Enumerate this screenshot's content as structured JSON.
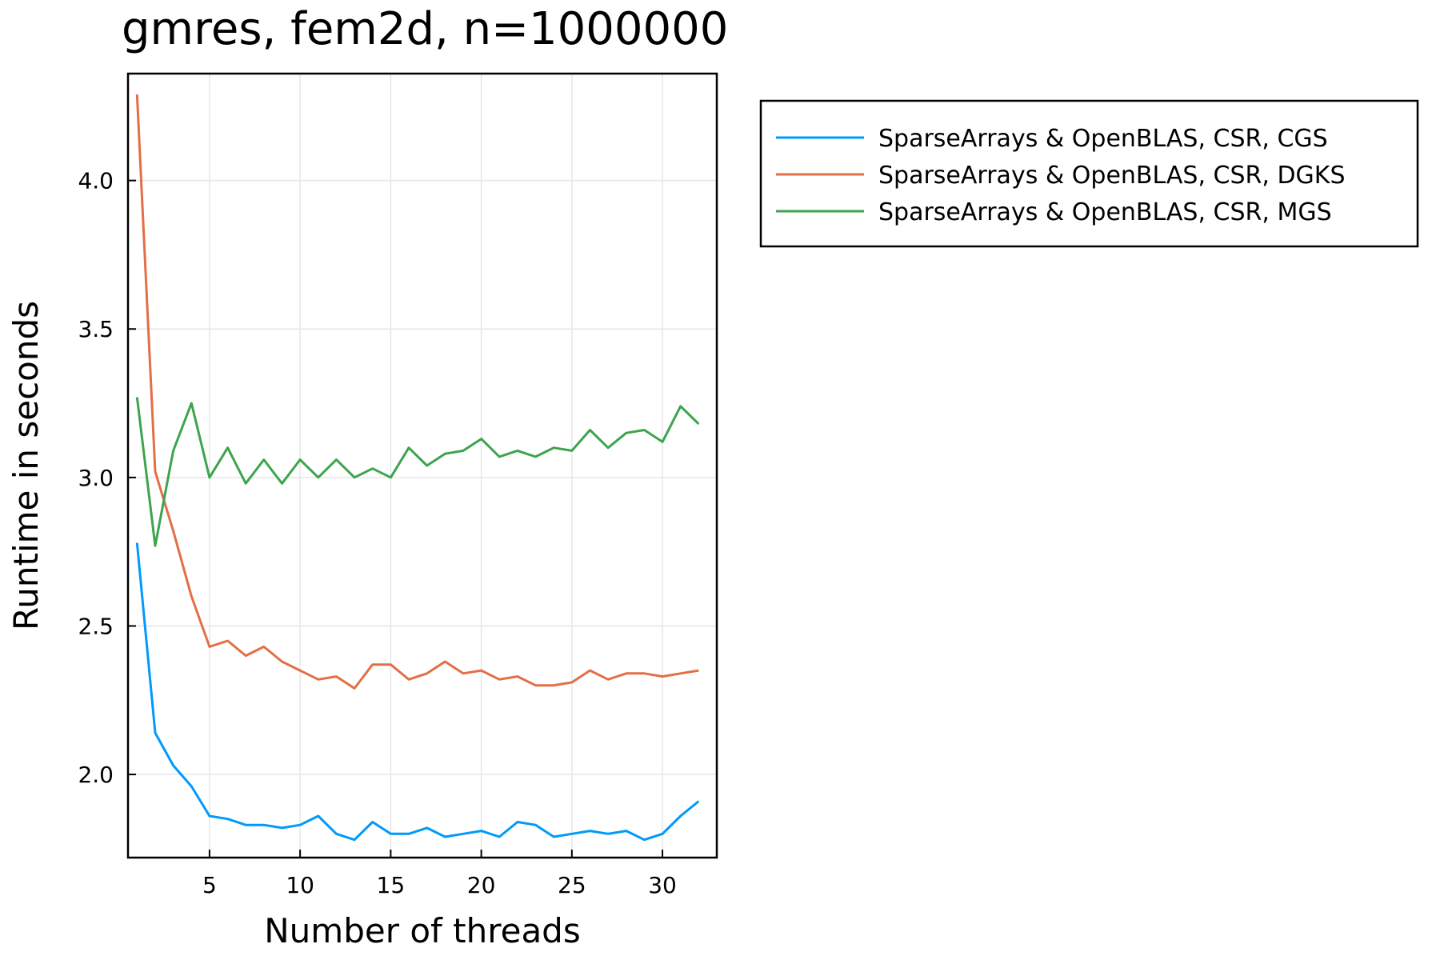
{
  "chart_data": {
    "type": "line",
    "title": "gmres, fem2d, n=1000000",
    "xlabel": "Number of threads",
    "ylabel": "Runtime in seconds",
    "xlim": [
      0.5,
      33
    ],
    "ylim": [
      1.72,
      4.36
    ],
    "xticks": [
      5,
      10,
      15,
      20,
      25,
      30
    ],
    "yticks": [
      2.0,
      2.5,
      3.0,
      3.5,
      4.0
    ],
    "xtick_labels": [
      "5",
      "10",
      "15",
      "20",
      "25",
      "30"
    ],
    "ytick_labels": [
      "2.0",
      "2.5",
      "3.0",
      "3.5",
      "4.0"
    ],
    "grid": true,
    "legend_position": "outside-top-right",
    "x": [
      1,
      2,
      3,
      4,
      5,
      6,
      7,
      8,
      9,
      10,
      11,
      12,
      13,
      14,
      15,
      16,
      17,
      18,
      19,
      20,
      21,
      22,
      23,
      24,
      25,
      26,
      27,
      28,
      29,
      30,
      31,
      32
    ],
    "series": [
      {
        "name": "SparseArrays & OpenBLAS, CSR, CGS",
        "color": "#009AFA",
        "values": [
          2.78,
          2.14,
          2.03,
          1.96,
          1.86,
          1.85,
          1.83,
          1.83,
          1.82,
          1.83,
          1.86,
          1.8,
          1.78,
          1.84,
          1.8,
          1.8,
          1.82,
          1.79,
          1.8,
          1.81,
          1.79,
          1.84,
          1.83,
          1.79,
          1.8,
          1.81,
          1.8,
          1.81,
          1.78,
          1.8,
          1.86,
          1.91
        ]
      },
      {
        "name": "SparseArrays & OpenBLAS, CSR, DGKS",
        "color": "#E26F46",
        "values": [
          4.29,
          3.02,
          2.82,
          2.6,
          2.43,
          2.45,
          2.4,
          2.43,
          2.38,
          2.35,
          2.32,
          2.33,
          2.29,
          2.37,
          2.37,
          2.32,
          2.34,
          2.38,
          2.34,
          2.35,
          2.32,
          2.33,
          2.3,
          2.3,
          2.31,
          2.35,
          2.32,
          2.34,
          2.34,
          2.33,
          2.34,
          2.35
        ]
      },
      {
        "name": "SparseArrays & OpenBLAS, CSR, MGS",
        "color": "#3DA44D",
        "values": [
          3.27,
          2.77,
          3.09,
          3.25,
          3.0,
          3.1,
          2.98,
          3.06,
          2.98,
          3.06,
          3.0,
          3.06,
          3.0,
          3.03,
          3.0,
          3.1,
          3.04,
          3.08,
          3.09,
          3.13,
          3.07,
          3.09,
          3.07,
          3.1,
          3.09,
          3.16,
          3.1,
          3.15,
          3.16,
          3.12,
          3.24,
          3.18
        ]
      }
    ]
  }
}
